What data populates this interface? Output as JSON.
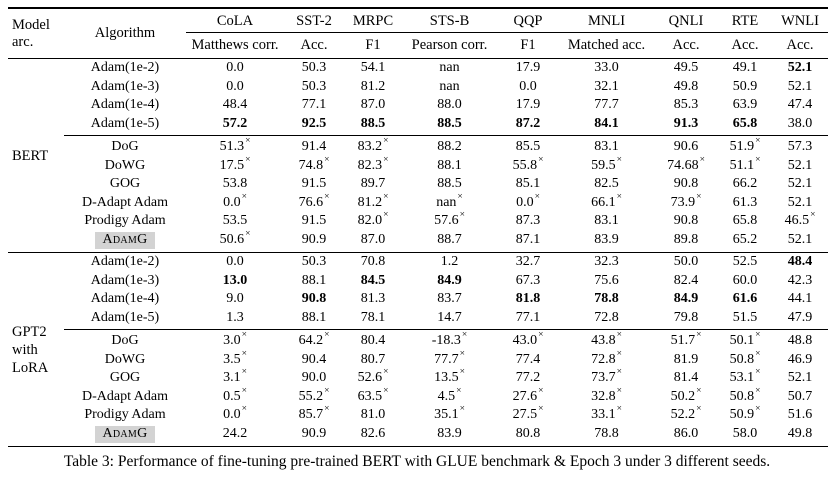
{
  "caption": "Table 3: Performance of fine-tuning pre-trained BERT with GLUE benchmark & Epoch 3 under 3 different seeds.",
  "table": {
    "fail_marker": "×",
    "highlight_color": "#d3d3d3",
    "header": {
      "model_arc": "Model\narc.",
      "algorithm": "Algorithm",
      "tasks": [
        {
          "name": "CoLA",
          "metric": "Matthews corr."
        },
        {
          "name": "SST-2",
          "metric": "Acc."
        },
        {
          "name": "MRPC",
          "metric": "F1"
        },
        {
          "name": "STS-B",
          "metric": "Pearson corr."
        },
        {
          "name": "QQP",
          "metric": "F1"
        },
        {
          "name": "MNLI",
          "metric": "Matched acc."
        },
        {
          "name": "QNLI",
          "metric": "Acc."
        },
        {
          "name": "RTE",
          "metric": "Acc."
        },
        {
          "name": "WNLI",
          "metric": "Acc."
        }
      ]
    },
    "sections": [
      {
        "model": "BERT",
        "groups": [
          {
            "rows": [
              {
                "algorithm": "Adam(1e-2)",
                "highlight": false,
                "cells": [
                  {
                    "v": "0.0"
                  },
                  {
                    "v": "50.3"
                  },
                  {
                    "v": "54.1"
                  },
                  {
                    "v": "nan"
                  },
                  {
                    "v": "17.9"
                  },
                  {
                    "v": "33.0"
                  },
                  {
                    "v": "49.5"
                  },
                  {
                    "v": "49.1"
                  },
                  {
                    "v": "52.1",
                    "b": true
                  }
                ]
              },
              {
                "algorithm": "Adam(1e-3)",
                "highlight": false,
                "cells": [
                  {
                    "v": "0.0"
                  },
                  {
                    "v": "50.3"
                  },
                  {
                    "v": "81.2"
                  },
                  {
                    "v": "nan"
                  },
                  {
                    "v": "0.0"
                  },
                  {
                    "v": "32.1"
                  },
                  {
                    "v": "49.8"
                  },
                  {
                    "v": "50.9"
                  },
                  {
                    "v": "52.1"
                  }
                ]
              },
              {
                "algorithm": "Adam(1e-4)",
                "highlight": false,
                "cells": [
                  {
                    "v": "48.4"
                  },
                  {
                    "v": "77.1"
                  },
                  {
                    "v": "87.0"
                  },
                  {
                    "v": "88.0"
                  },
                  {
                    "v": "17.9"
                  },
                  {
                    "v": "77.7"
                  },
                  {
                    "v": "85.3"
                  },
                  {
                    "v": "63.9"
                  },
                  {
                    "v": "47.4"
                  }
                ]
              },
              {
                "algorithm": "Adam(1e-5)",
                "highlight": false,
                "cells": [
                  {
                    "v": "57.2",
                    "b": true
                  },
                  {
                    "v": "92.5",
                    "b": true
                  },
                  {
                    "v": "88.5",
                    "b": true
                  },
                  {
                    "v": "88.5",
                    "b": true
                  },
                  {
                    "v": "87.2",
                    "b": true
                  },
                  {
                    "v": "84.1",
                    "b": true
                  },
                  {
                    "v": "91.3",
                    "b": true
                  },
                  {
                    "v": "65.8",
                    "b": true
                  },
                  {
                    "v": "38.0"
                  }
                ]
              }
            ]
          },
          {
            "rows": [
              {
                "algorithm": "DoG",
                "highlight": false,
                "cells": [
                  {
                    "v": "51.3",
                    "x": true
                  },
                  {
                    "v": "91.4"
                  },
                  {
                    "v": "83.2",
                    "x": true
                  },
                  {
                    "v": "88.2"
                  },
                  {
                    "v": "85.5"
                  },
                  {
                    "v": "83.1"
                  },
                  {
                    "v": "90.6"
                  },
                  {
                    "v": "51.9",
                    "x": true
                  },
                  {
                    "v": "57.3"
                  }
                ]
              },
              {
                "algorithm": "DoWG",
                "highlight": false,
                "cells": [
                  {
                    "v": "17.5",
                    "x": true
                  },
                  {
                    "v": "74.8",
                    "x": true
                  },
                  {
                    "v": "82.3",
                    "x": true
                  },
                  {
                    "v": "88.1"
                  },
                  {
                    "v": "55.8",
                    "x": true
                  },
                  {
                    "v": "59.5",
                    "x": true
                  },
                  {
                    "v": "74.68",
                    "x": true
                  },
                  {
                    "v": "51.1",
                    "x": true
                  },
                  {
                    "v": "52.1"
                  }
                ]
              },
              {
                "algorithm": "GOG",
                "highlight": false,
                "cells": [
                  {
                    "v": "53.8"
                  },
                  {
                    "v": "91.5"
                  },
                  {
                    "v": "89.7"
                  },
                  {
                    "v": "88.5"
                  },
                  {
                    "v": "85.1"
                  },
                  {
                    "v": "82.5"
                  },
                  {
                    "v": "90.8"
                  },
                  {
                    "v": "66.2"
                  },
                  {
                    "v": "52.1"
                  }
                ]
              },
              {
                "algorithm": "D-Adapt Adam",
                "highlight": false,
                "cells": [
                  {
                    "v": "0.0",
                    "x": true
                  },
                  {
                    "v": "76.6",
                    "x": true
                  },
                  {
                    "v": "81.2",
                    "x": true
                  },
                  {
                    "v": "nan",
                    "x": true
                  },
                  {
                    "v": "0.0",
                    "x": true
                  },
                  {
                    "v": "66.1",
                    "x": true
                  },
                  {
                    "v": "73.9",
                    "x": true
                  },
                  {
                    "v": "61.3"
                  },
                  {
                    "v": "52.1"
                  }
                ]
              },
              {
                "algorithm": "Prodigy Adam",
                "highlight": false,
                "cells": [
                  {
                    "v": "53.5"
                  },
                  {
                    "v": "91.5"
                  },
                  {
                    "v": "82.0",
                    "x": true
                  },
                  {
                    "v": "57.6",
                    "x": true
                  },
                  {
                    "v": "87.3"
                  },
                  {
                    "v": "83.1"
                  },
                  {
                    "v": "90.8"
                  },
                  {
                    "v": "65.8"
                  },
                  {
                    "v": "46.5",
                    "x": true
                  }
                ]
              },
              {
                "algorithm": "AdamG",
                "highlight": true,
                "cells": [
                  {
                    "v": "50.6",
                    "x": true
                  },
                  {
                    "v": "90.9"
                  },
                  {
                    "v": "87.0"
                  },
                  {
                    "v": "88.7"
                  },
                  {
                    "v": "87.1"
                  },
                  {
                    "v": "83.9"
                  },
                  {
                    "v": "89.8"
                  },
                  {
                    "v": "65.2"
                  },
                  {
                    "v": "52.1"
                  }
                ]
              }
            ]
          }
        ]
      },
      {
        "model": "GPT2\nwith\nLoRA",
        "groups": [
          {
            "rows": [
              {
                "algorithm": "Adam(1e-2)",
                "highlight": false,
                "cells": [
                  {
                    "v": "0.0"
                  },
                  {
                    "v": "50.3"
                  },
                  {
                    "v": "70.8"
                  },
                  {
                    "v": "1.2"
                  },
                  {
                    "v": "32.7"
                  },
                  {
                    "v": "32.3"
                  },
                  {
                    "v": "50.0"
                  },
                  {
                    "v": "52.5"
                  },
                  {
                    "v": "48.4",
                    "b": true
                  }
                ]
              },
              {
                "algorithm": "Adam(1e-3)",
                "highlight": false,
                "cells": [
                  {
                    "v": "13.0",
                    "b": true
                  },
                  {
                    "v": "88.1"
                  },
                  {
                    "v": "84.5",
                    "b": true
                  },
                  {
                    "v": "84.9",
                    "b": true
                  },
                  {
                    "v": "67.3"
                  },
                  {
                    "v": "75.6"
                  },
                  {
                    "v": "82.4"
                  },
                  {
                    "v": "60.0"
                  },
                  {
                    "v": "42.3"
                  }
                ]
              },
              {
                "algorithm": "Adam(1e-4)",
                "highlight": false,
                "cells": [
                  {
                    "v": "9.0"
                  },
                  {
                    "v": "90.8",
                    "b": true
                  },
                  {
                    "v": "81.3"
                  },
                  {
                    "v": "83.7"
                  },
                  {
                    "v": "81.8",
                    "b": true
                  },
                  {
                    "v": "78.8",
                    "b": true
                  },
                  {
                    "v": "84.9",
                    "b": true
                  },
                  {
                    "v": "61.6",
                    "b": true
                  },
                  {
                    "v": "44.1"
                  }
                ]
              },
              {
                "algorithm": "Adam(1e-5)",
                "highlight": false,
                "cells": [
                  {
                    "v": "1.3"
                  },
                  {
                    "v": "88.1"
                  },
                  {
                    "v": "78.1"
                  },
                  {
                    "v": "14.7"
                  },
                  {
                    "v": "77.1"
                  },
                  {
                    "v": "72.8"
                  },
                  {
                    "v": "79.8"
                  },
                  {
                    "v": "51.5"
                  },
                  {
                    "v": "47.9"
                  }
                ]
              }
            ]
          },
          {
            "rows": [
              {
                "algorithm": "DoG",
                "highlight": false,
                "cells": [
                  {
                    "v": "3.0",
                    "x": true
                  },
                  {
                    "v": "64.2",
                    "x": true
                  },
                  {
                    "v": "80.4"
                  },
                  {
                    "v": "-18.3",
                    "x": true
                  },
                  {
                    "v": "43.0",
                    "x": true
                  },
                  {
                    "v": "43.8",
                    "x": true
                  },
                  {
                    "v": "51.7",
                    "x": true
                  },
                  {
                    "v": "50.1",
                    "x": true
                  },
                  {
                    "v": "48.8"
                  }
                ]
              },
              {
                "algorithm": "DoWG",
                "highlight": false,
                "cells": [
                  {
                    "v": "3.5",
                    "x": true
                  },
                  {
                    "v": "90.4"
                  },
                  {
                    "v": "80.7"
                  },
                  {
                    "v": "77.7",
                    "x": true
                  },
                  {
                    "v": "77.4"
                  },
                  {
                    "v": "72.8",
                    "x": true
                  },
                  {
                    "v": "81.9"
                  },
                  {
                    "v": "50.8",
                    "x": true
                  },
                  {
                    "v": "46.9"
                  }
                ]
              },
              {
                "algorithm": "GOG",
                "highlight": false,
                "cells": [
                  {
                    "v": "3.1",
                    "x": true
                  },
                  {
                    "v": "90.0"
                  },
                  {
                    "v": "52.6",
                    "x": true
                  },
                  {
                    "v": "13.5",
                    "x": true
                  },
                  {
                    "v": "77.2"
                  },
                  {
                    "v": "73.7",
                    "x": true
                  },
                  {
                    "v": "81.4"
                  },
                  {
                    "v": "53.1",
                    "x": true
                  },
                  {
                    "v": "52.1"
                  }
                ]
              },
              {
                "algorithm": "D-Adapt Adam",
                "highlight": false,
                "cells": [
                  {
                    "v": "0.5",
                    "x": true
                  },
                  {
                    "v": "55.2",
                    "x": true
                  },
                  {
                    "v": "63.5",
                    "x": true
                  },
                  {
                    "v": "4.5",
                    "x": true
                  },
                  {
                    "v": "27.6",
                    "x": true
                  },
                  {
                    "v": "32.8",
                    "x": true
                  },
                  {
                    "v": "50.2",
                    "x": true
                  },
                  {
                    "v": "50.8",
                    "x": true
                  },
                  {
                    "v": "50.7"
                  }
                ]
              },
              {
                "algorithm": "Prodigy Adam",
                "highlight": false,
                "cells": [
                  {
                    "v": "0.0",
                    "x": true
                  },
                  {
                    "v": "85.7",
                    "x": true
                  },
                  {
                    "v": "81.0"
                  },
                  {
                    "v": "35.1",
                    "x": true
                  },
                  {
                    "v": "27.5",
                    "x": true
                  },
                  {
                    "v": "33.1",
                    "x": true
                  },
                  {
                    "v": "52.2",
                    "x": true
                  },
                  {
                    "v": "50.9",
                    "x": true
                  },
                  {
                    "v": "51.6"
                  }
                ]
              },
              {
                "algorithm": "AdamG",
                "highlight": true,
                "cells": [
                  {
                    "v": "24.2"
                  },
                  {
                    "v": "90.9"
                  },
                  {
                    "v": "82.6"
                  },
                  {
                    "v": "83.9"
                  },
                  {
                    "v": "80.8"
                  },
                  {
                    "v": "78.8"
                  },
                  {
                    "v": "86.0"
                  },
                  {
                    "v": "58.0"
                  },
                  {
                    "v": "49.8"
                  }
                ]
              }
            ]
          }
        ]
      }
    ]
  }
}
